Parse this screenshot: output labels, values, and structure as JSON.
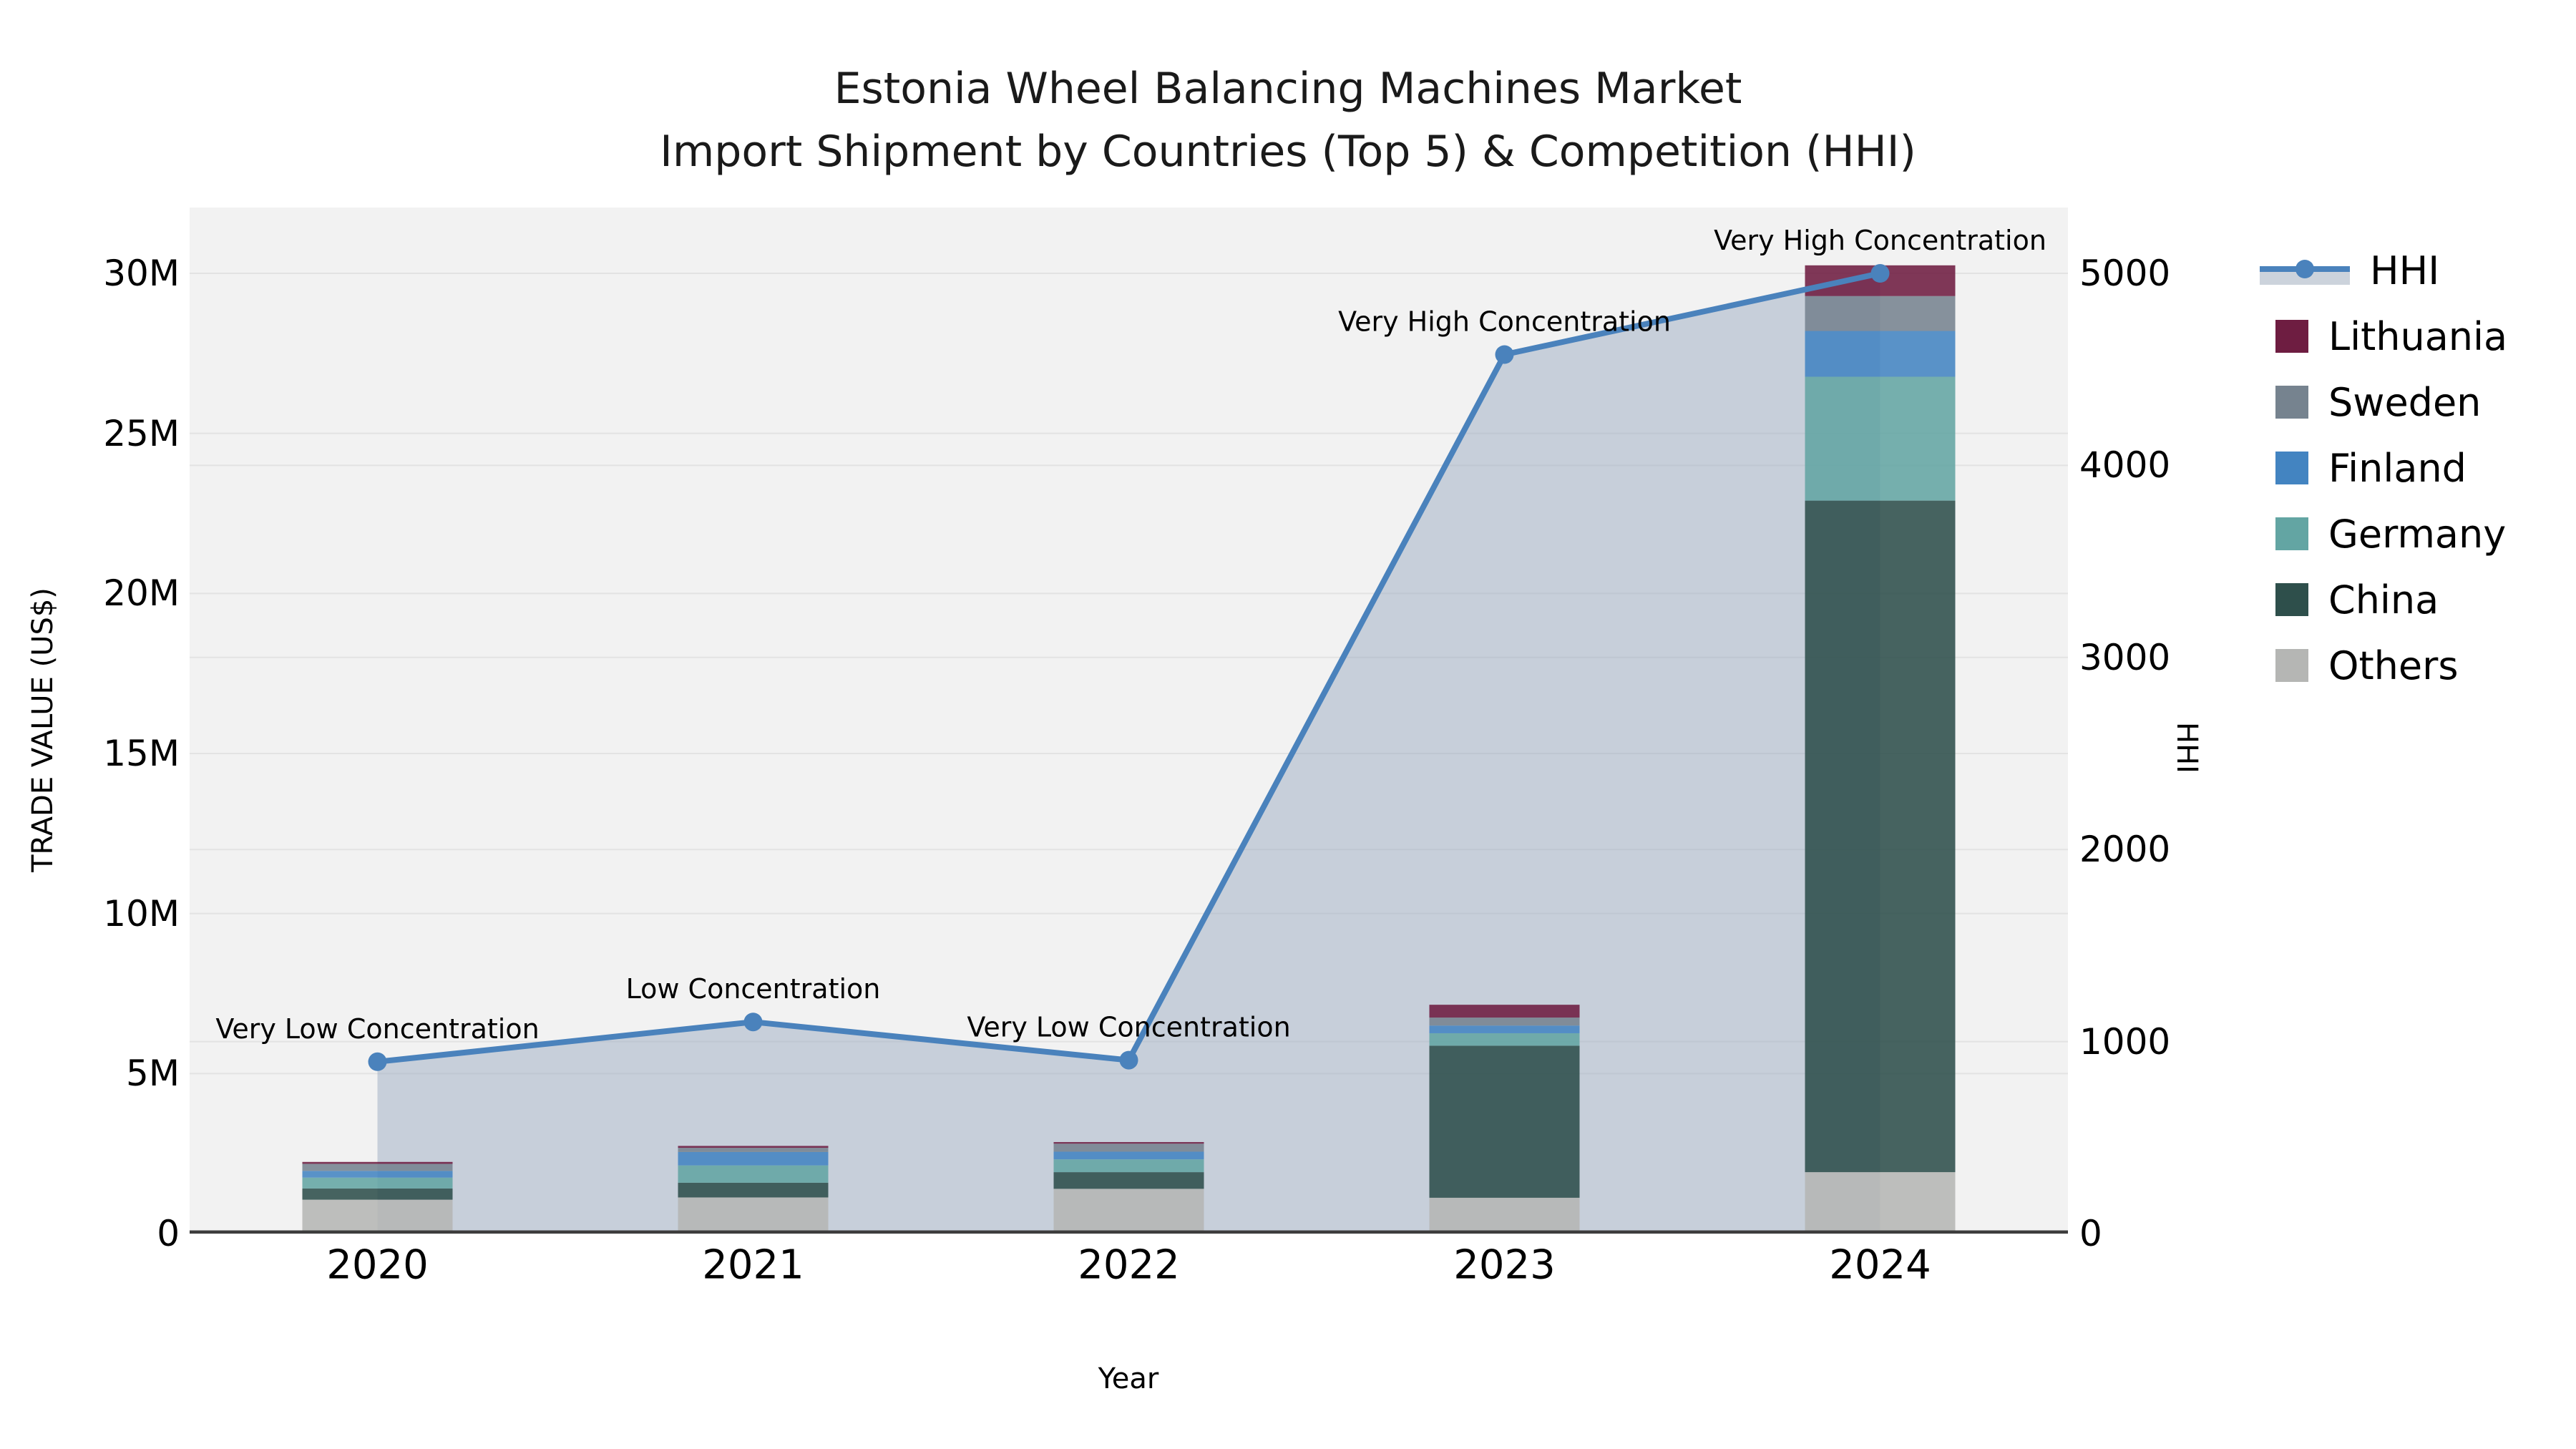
{
  "title": {
    "line1": "Estonia Wheel Balancing Machines Market",
    "line2": "Import Shipment by Countries (Top 5) & Competition (HHI)"
  },
  "axes": {
    "left": {
      "label": "TRADE VALUE (US$)",
      "ticks": [
        "0",
        "5M",
        "10M",
        "15M",
        "20M",
        "25M",
        "30M"
      ],
      "tick_values": [
        0,
        5,
        10,
        15,
        20,
        25,
        30
      ]
    },
    "right": {
      "label": "HHI",
      "ticks": [
        "0",
        "1000",
        "2000",
        "3000",
        "4000",
        "5000"
      ],
      "tick_values": [
        0,
        1000,
        2000,
        3000,
        4000,
        5000
      ]
    },
    "x": {
      "label": "Year"
    }
  },
  "legend": [
    {
      "name": "HHI",
      "type": "line",
      "color": "#4a82bc"
    },
    {
      "name": "Lithuania",
      "type": "patch",
      "color": "#6e1d41"
    },
    {
      "name": "Sweden",
      "type": "patch",
      "color": "#76838f"
    },
    {
      "name": "Finland",
      "type": "patch",
      "color": "#4384c1"
    },
    {
      "name": "Germany",
      "type": "patch",
      "color": "#63a5a3"
    },
    {
      "name": "China",
      "type": "patch",
      "color": "#2e4f4b"
    },
    {
      "name": "Others",
      "type": "patch",
      "color": "#b5b6b4"
    }
  ],
  "chart_data": {
    "type": "combo-stacked-bar-line",
    "categories": [
      "2020",
      "2021",
      "2022",
      "2023",
      "2024"
    ],
    "bar_unit": "million US$",
    "series": [
      {
        "name": "Others",
        "color": "#b5b6b4",
        "values": [
          1.06,
          1.13,
          1.4,
          1.12,
          1.92
        ]
      },
      {
        "name": "China",
        "color": "#2e4f4b",
        "values": [
          0.35,
          0.46,
          0.52,
          4.75,
          20.98
        ]
      },
      {
        "name": "Germany",
        "color": "#63a5a3",
        "values": [
          0.34,
          0.54,
          0.4,
          0.39,
          3.87
        ]
      },
      {
        "name": "Finland",
        "color": "#4384c1",
        "values": [
          0.21,
          0.42,
          0.24,
          0.24,
          1.43
        ]
      },
      {
        "name": "Sweden",
        "color": "#76838f",
        "values": [
          0.22,
          0.13,
          0.25,
          0.25,
          1.09
        ]
      },
      {
        "name": "Lithuania",
        "color": "#6e1d41",
        "values": [
          0.06,
          0.06,
          0.05,
          0.4,
          0.96
        ]
      }
    ],
    "line_series": {
      "name": "HHI",
      "axis": "right",
      "color": "#4a82bc",
      "values": [
        895,
        1102,
        903,
        4577,
        5000
      ]
    },
    "annotations": [
      "Very Low Concentration",
      "Low Concentration",
      "Very Low Concentration",
      "Very High Concentration",
      "Very High Concentration"
    ],
    "ylim_left": [
      0,
      30
    ],
    "ylim_right": [
      0,
      5000
    ],
    "grid": true,
    "legend_position": "right"
  },
  "colors": {
    "plot_background": "#f2f2f2",
    "area_fill": "rgba(146,163,189,0.45)",
    "gridline": "#e3e3e3",
    "baseline": "#3d3d3d",
    "hhi_line": "#4a82bc",
    "legend_band": "#ccd3dc"
  }
}
